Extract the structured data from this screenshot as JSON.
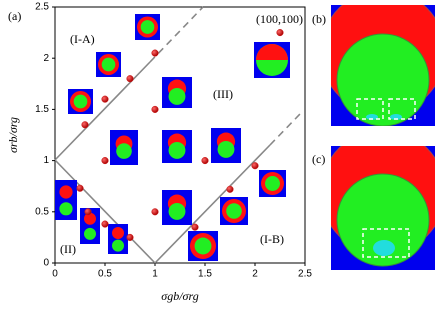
{
  "chart_data": {
    "type": "scatter",
    "panel_labels": [
      "(a)",
      "(b)",
      "(c)"
    ],
    "region_labels": [
      "(I-A)",
      "(II)",
      "(III)",
      "(I-B)",
      "(100,100)"
    ],
    "x_label": "σgb/σrg",
    "y_label": "σrb/σrg",
    "x": [
      0.25,
      0.33,
      0.5,
      0.75,
      0.5,
      1.0,
      1.0,
      0.75,
      0.5,
      0.3,
      1.0,
      1.4,
      1.75,
      2.0,
      2.25,
      1.5
    ],
    "series": [
      {
        "color": "#cc1a1a",
        "values": [
          0.73,
          0.5,
          0.38,
          0.25,
          1.0,
          1.5,
          2.05,
          1.8,
          1.6,
          1.35,
          0.5,
          0.35,
          0.72,
          0.95,
          2.25,
          1.0
        ]
      }
    ],
    "xlim": [
      0,
      2.5
    ],
    "ylim": [
      0,
      2.5
    ],
    "xticks": [
      0,
      0.5,
      1,
      1.5,
      2,
      2.5
    ],
    "yticks": [
      0,
      0.5,
      1,
      1.5,
      2,
      2.5
    ]
  }
}
